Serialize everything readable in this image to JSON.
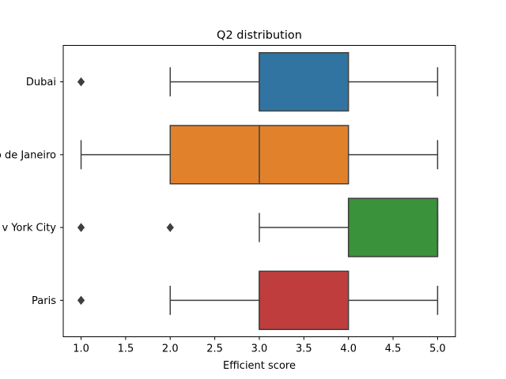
{
  "chart_data": {
    "type": "boxplot",
    "orientation": "horizontal",
    "title": "Q2 distribution",
    "xlabel": "Efficient score",
    "ylabel": "",
    "xlim": [
      0.8,
      5.2
    ],
    "xticks": [
      1.0,
      1.5,
      2.0,
      2.5,
      3.0,
      3.5,
      4.0,
      4.5,
      5.0
    ],
    "xtick_labels": [
      "1.0",
      "1.5",
      "2.0",
      "2.5",
      "3.0",
      "3.5",
      "4.0",
      "4.5",
      "5.0"
    ],
    "grid": false,
    "legend": "none",
    "categories": [
      "Dubai",
      "Rio de Janeiro",
      "New York City",
      "Paris"
    ],
    "category_tick_labels": [
      "Dubai",
      "o de Janeiro",
      "v York City",
      "Paris"
    ],
    "boxes": [
      {
        "category": "Dubai",
        "whisker_low": 2,
        "q1": 3,
        "median": 3,
        "q3": 4,
        "whisker_high": 5,
        "outliers": [
          1
        ],
        "color": "#3274a1"
      },
      {
        "category": "Rio de Janeiro",
        "whisker_low": 1,
        "q1": 2,
        "median": 3,
        "q3": 4,
        "whisker_high": 5,
        "outliers": [],
        "color": "#e1812c"
      },
      {
        "category": "New York City",
        "whisker_low": 3,
        "q1": 4,
        "median": 5,
        "q3": 5,
        "whisker_high": 5,
        "outliers": [
          1,
          2
        ],
        "color": "#3a923a"
      },
      {
        "category": "Paris",
        "whisker_low": 2,
        "q1": 3,
        "median": 3,
        "q3": 4,
        "whisker_high": 5,
        "outliers": [
          1
        ],
        "color": "#c03d3e"
      }
    ]
  }
}
